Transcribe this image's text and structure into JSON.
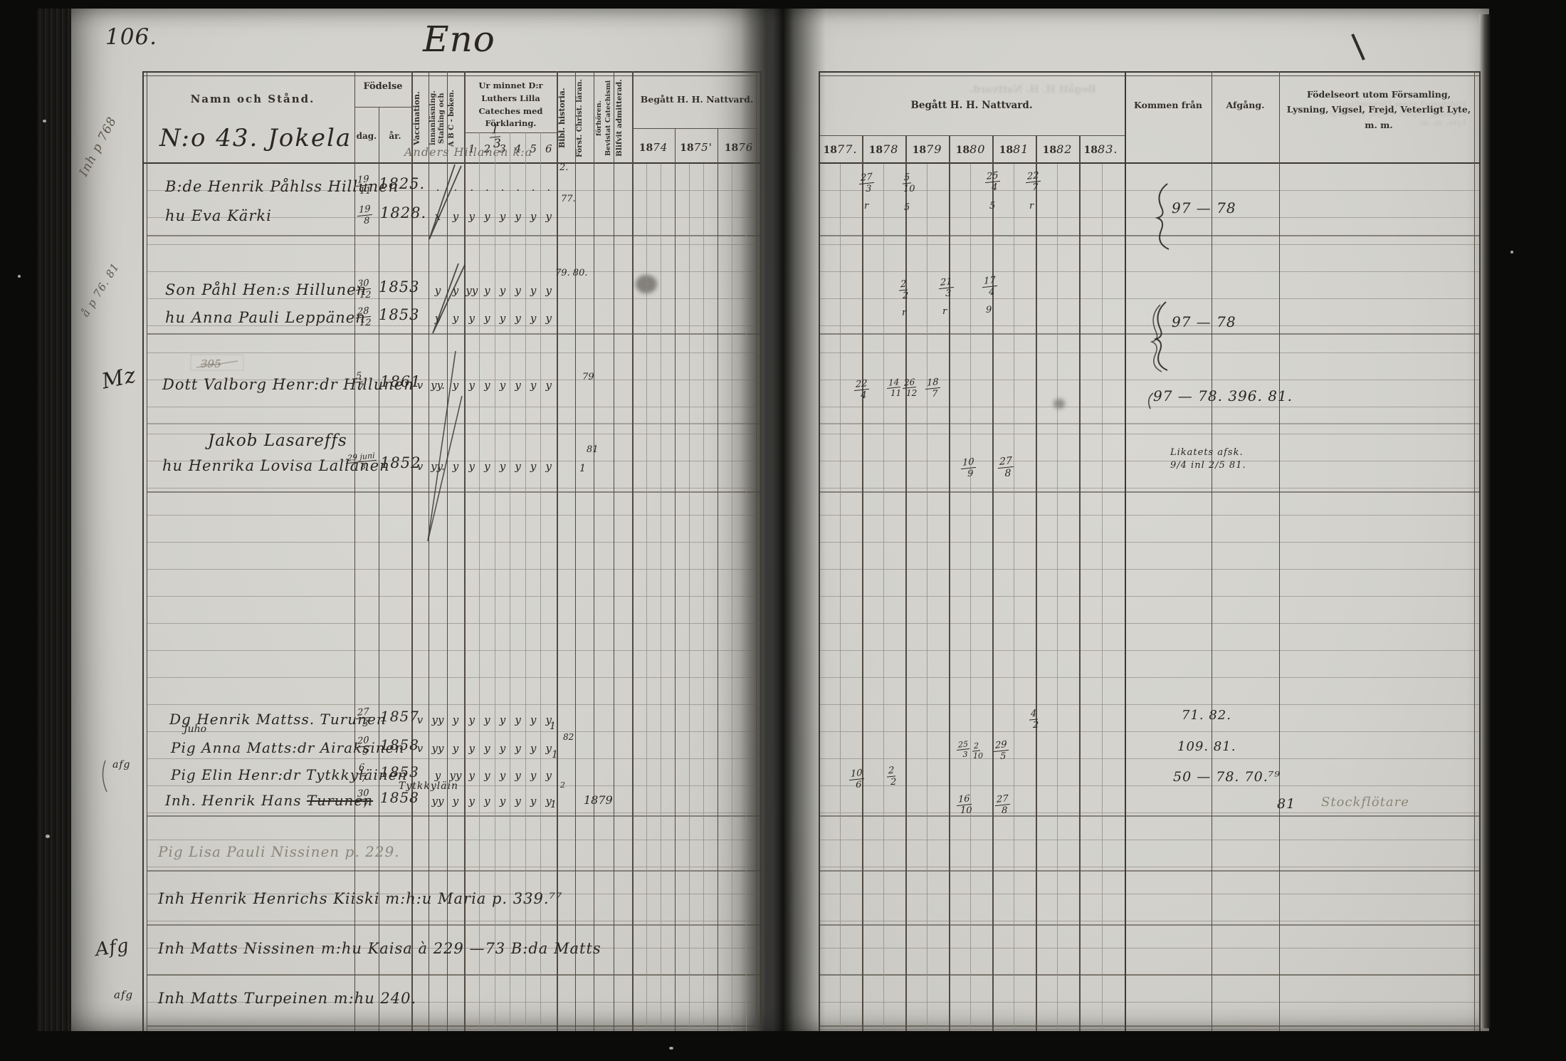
{
  "scan": {
    "page_number": "106.",
    "book_title": "Eno"
  },
  "left_table": {
    "name_header": "Namn och Stånd.",
    "birth_header": "Födelse",
    "birth_day": "dag.",
    "birth_year": "år.",
    "vaccination": "Vaccination.",
    "spelling_1": "Stafning och",
    "spelling_2": "innanläsning.",
    "abc": "A B C - boken.",
    "catechism": "Ur minnet D:r Luthers Lilla Cateches med Förklaring.",
    "catechism_cols": [
      "1",
      "2",
      "3",
      "4",
      "5",
      "6"
    ],
    "bibl": "Bibl. historia.",
    "christ": "Först. Christ. läran.",
    "attended_1": "Bevistat Catechismi",
    "attended_2": "förhören.",
    "admitted": "Blifvit admitterad.",
    "communion": "Begått H. H. Nattvard.",
    "years": [
      {
        "p": "18",
        "s": "74"
      },
      {
        "p": "18",
        "s": "75'"
      },
      {
        "p": "18",
        "s": "76"
      }
    ],
    "farm_no": "N:o 43. Jokela",
    "farm_share_n": "1",
    "farm_share_d": "3",
    "header_scribble": "Anders Hillanen k:a"
  },
  "right_table": {
    "communion": "Begått H. H. Nattvard.",
    "years": [
      {
        "p": "18",
        "s": "77."
      },
      {
        "p": "18",
        "s": "78"
      },
      {
        "p": "18",
        "s": "79"
      },
      {
        "p": "18",
        "s": "80"
      },
      {
        "p": "18",
        "s": "81"
      },
      {
        "p": "18",
        "s": "82"
      },
      {
        "p": "18",
        "s": "83."
      }
    ],
    "come_from": "Kommen från",
    "departure": "Afgång.",
    "notes_header": "Födelseort utom Församling, Lysning, Vigsel, Frejd, Veterligt Lyte, m. m."
  },
  "entries": [
    {
      "name": "B:de Henrik Påhlss Hillunen",
      "bn": "19",
      "bd": "11",
      "year": "1825.",
      "marks": [
        "",
        ".",
        ".",
        ".",
        ".",
        ".",
        ".",
        ".",
        ".",
        ""
      ]
    },
    {
      "name": "hu Eva Kärki",
      "bn": "19",
      "bd": "8",
      "year": "1828.",
      "marks": [
        "",
        "x",
        "y",
        "y",
        "y",
        "y",
        "y",
        "y",
        "y",
        ""
      ]
    },
    {
      "name": "Son Påhl Hen:s Hillunen",
      "bn": "30",
      "bd": "12",
      "year": "1853",
      "marks": [
        "",
        "y",
        "y",
        "yy",
        "y",
        "y",
        "y",
        "y",
        "y",
        ""
      ]
    },
    {
      "name": "hu Anna Pauli Leppänen",
      "bn": "28",
      "bd": "12",
      "year": "1853",
      "marks": [
        "",
        "y",
        "y",
        "y",
        "y",
        "y",
        "y",
        "y",
        "y",
        ""
      ]
    },
    {
      "name": "Dott Valborg Henr:dr Hillunen",
      "bn": "5",
      "bd": "7",
      "year": "1861",
      "marks": [
        "v",
        "yy.",
        "y",
        "y",
        "y",
        "y",
        "y",
        "y",
        "y",
        ""
      ]
    },
    {
      "name": "Jakob Lasareffs"
    },
    {
      "name": "hu Henrika Lovisa Lallanen",
      "bn": "29 juni",
      "bd": "8",
      "year": "1852",
      "marks": [
        "v",
        "yy.",
        "y",
        "y",
        "y",
        "y",
        "y",
        "y",
        "y",
        ""
      ]
    },
    {
      "name": "Dg Henrik Mattss. Turunen",
      "bn": "27",
      "bd": "3",
      "year": "1857",
      "marks": [
        "v",
        "yy",
        "y",
        "y",
        "y",
        "y",
        "y",
        "y",
        "y",
        ""
      ]
    },
    {
      "name": "Pig Anna Matts:dr Airaksinen",
      "bn": "20",
      "bd": "9",
      "year": "1858",
      "marks": [
        "v",
        "yy",
        "y",
        "y",
        "y",
        "y",
        "y",
        "y",
        "y",
        ""
      ]
    },
    {
      "name": "Pig Elin Henr:dr Tytkkyläinen",
      "bn": "6",
      "bd": "7",
      "year": "1853",
      "marks": [
        "",
        "y",
        "yy",
        "y",
        "y",
        "y",
        "y",
        "y",
        "y",
        ""
      ]
    },
    {
      "name": "Inh. Henrik Hans",
      "struck": "Turunen",
      "above": "Tytkkyläin",
      "bn": "30",
      "bd": "7",
      "year": "1858",
      "marks": [
        "",
        "yy",
        "y",
        "y",
        "y",
        "y",
        "y",
        "y",
        "y",
        ""
      ]
    }
  ],
  "extra_rows": [
    {
      "text": "Pig Lisa Pauli Nissinen p. 229."
    },
    {
      "text": "Inh Henrik Henrichs Kiiski m:h:u Maria p. 339.⁷⁷"
    },
    {
      "text": "Inh Matts Nissinen m:hu Kaisa à 229 —73 B:da Matts"
    },
    {
      "text": "Inh Matts Turpeinen m:hu 240."
    }
  ],
  "margin_notes": [
    "Inh p 768",
    "å p 76. 81",
    "Mz",
    "afg",
    "Afg",
    "afg"
  ],
  "stray_marks": [
    "2.",
    "77.",
    "79. 80.",
    "79",
    "81",
    "1",
    "82",
    "1",
    "1",
    "2",
    "1",
    "1879",
    "395",
    "Juho"
  ],
  "communion_marks": [
    {
      "n": "27",
      "d": "3",
      "s": "r"
    },
    {
      "n": "5",
      "d": "10",
      "s": "5"
    },
    {
      "n": "25",
      "d": "4",
      "s": "5"
    },
    {
      "n": "22",
      "d": "7",
      "s": "r"
    },
    {
      "n": "2",
      "d": "2",
      "s": "r"
    },
    {
      "n": "21",
      "d": "3",
      "s": "r"
    },
    {
      "n": "17",
      "d": "4",
      "s": "9"
    },
    {
      "n": "22",
      "d": "4"
    },
    {
      "n": "14",
      "d": "11"
    },
    {
      "n": "26",
      "d": "12"
    },
    {
      "n": "18",
      "d": "7"
    },
    {
      "n": "10",
      "d": "9"
    },
    {
      "n": "27",
      "d": "8"
    },
    {
      "n": "4",
      "d": "2"
    },
    {
      "n": "25",
      "d": "3"
    },
    {
      "n": "2",
      "d": "10"
    },
    {
      "n": "29",
      "d": "5"
    },
    {
      "n": "10",
      "d": "6"
    },
    {
      "n": "2",
      "d": "2"
    },
    {
      "n": "16",
      "d": "10"
    },
    {
      "n": "27",
      "d": "8"
    }
  ],
  "right_notes": {
    "fam1": "97 — 78",
    "fam2": "97 — 78",
    "valborg": "97 — 78. 396. 81.",
    "henrika_1": "Likatets afsk.",
    "henrika_2": "9/4 inl 2/5 81.",
    "turunen": "71. 82.",
    "airaksinen": "109. 81.",
    "elin": "50 — 78. 70.⁷⁹",
    "hans_departure": "81",
    "hans_note": "Stockflötare"
  }
}
